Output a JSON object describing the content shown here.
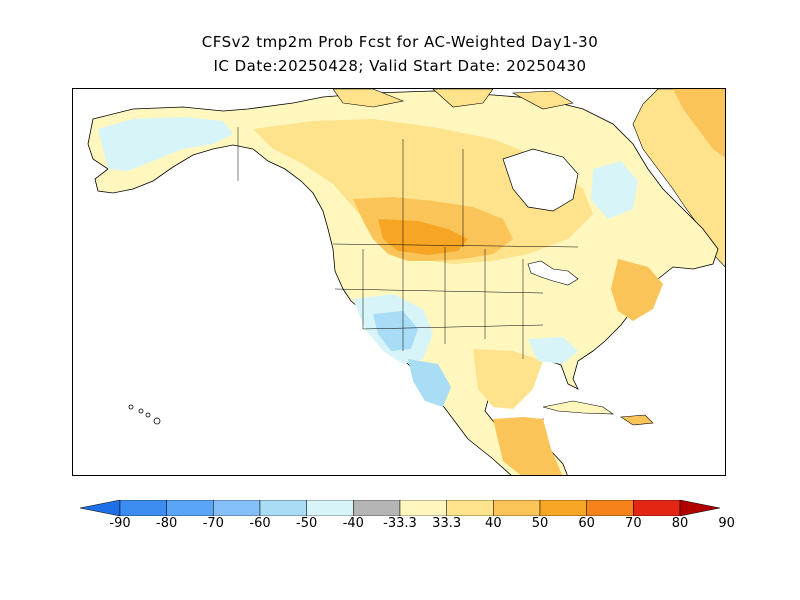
{
  "title_line1": "CFSv2 tmp2m Prob Fcst for AC-Weighted Day1-30",
  "title_line2": "IC Date:20250428; Valid Start Date: 20250430",
  "colorbar": {
    "colors": [
      "#1f6fe6",
      "#3d8cf0",
      "#5aa5f5",
      "#84c0f7",
      "#a9dcf5",
      "#d7f5f8",
      "#b4b4b4",
      "#fff7be",
      "#ffe38c",
      "#fbc459",
      "#f6a524",
      "#f6821a",
      "#e32613",
      "#b00000"
    ],
    "labels": [
      "-90",
      "-80",
      "-70",
      "-60",
      "-50",
      "-40",
      "-33.3",
      "33.3",
      "40",
      "50",
      "60",
      "70",
      "80",
      "90"
    ]
  },
  "map": {
    "ocean_color": "#ffffff",
    "land_color": "#fff7be",
    "warm_color": "#ffe38c",
    "warmer_color": "#fbc459",
    "hot_color": "#f6a524",
    "cool_color": "#d7f5f8",
    "cooler_color": "#a9dcf5",
    "coldest_color": "#84c0f7",
    "outline_color": "#000000"
  }
}
